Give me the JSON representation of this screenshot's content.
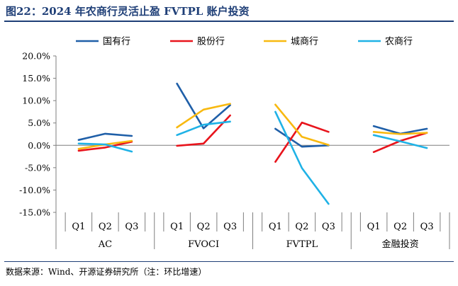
{
  "header": {
    "title": "图22：2024 年农商行灵活止盈 FVTPL 账户投资"
  },
  "footer": {
    "source": "数据来源：Wind、开源证券研究所（注：环比增速）"
  },
  "chart_data": {
    "type": "line",
    "y_axis": {
      "min": -15,
      "max": 20,
      "step": 5,
      "tick_labels": [
        "-15.0%",
        "-10.0%",
        "-5.0%",
        "0.0%",
        "5.0%",
        "10.0%",
        "15.0%",
        "20.0%"
      ]
    },
    "groups": [
      {
        "name": "AC",
        "quarters": [
          "Q1",
          "Q2",
          "Q3"
        ]
      },
      {
        "name": "FVOCI",
        "quarters": [
          "Q1",
          "Q2",
          "Q3"
        ]
      },
      {
        "name": "FVTPL",
        "quarters": [
          "Q1",
          "Q2",
          "Q3"
        ]
      },
      {
        "name": "金融投资",
        "quarters": [
          "Q1",
          "Q2",
          "Q3"
        ]
      }
    ],
    "legend_position": "top",
    "series": [
      {
        "name": "国有行",
        "color": "#1f5fa8",
        "values": [
          [
            1.2,
            2.6,
            2.1
          ],
          [
            13.8,
            3.8,
            9.0
          ],
          [
            3.7,
            -0.3,
            0.0
          ],
          [
            4.3,
            2.6,
            3.7
          ]
        ]
      },
      {
        "name": "股份行",
        "color": "#e8141c",
        "values": [
          [
            -1.2,
            -0.5,
            0.8
          ],
          [
            -0.1,
            0.4,
            6.7
          ],
          [
            -3.7,
            5.1,
            3.0
          ],
          [
            -1.5,
            1.0,
            2.8
          ]
        ]
      },
      {
        "name": "城商行",
        "color": "#f8b910",
        "values": [
          [
            -0.8,
            0.2,
            1.0
          ],
          [
            4.0,
            8.0,
            9.3
          ],
          [
            9.1,
            1.9,
            0.1
          ],
          [
            3.0,
            2.5,
            2.8
          ]
        ]
      },
      {
        "name": "农商行",
        "color": "#1fb2e6",
        "values": [
          [
            0.4,
            0.2,
            -1.4
          ],
          [
            2.3,
            4.6,
            5.3
          ],
          [
            7.5,
            -5.1,
            -13.1
          ],
          [
            2.3,
            0.9,
            -0.6
          ]
        ]
      }
    ]
  }
}
